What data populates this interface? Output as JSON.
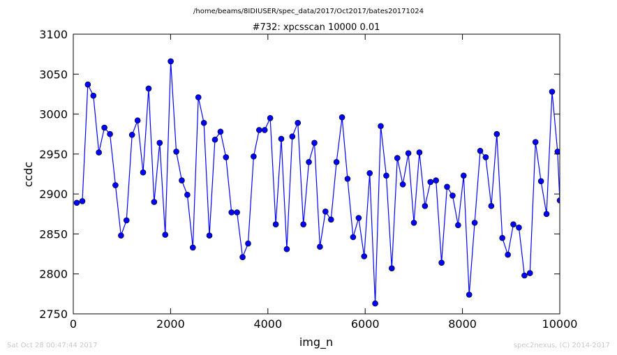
{
  "chart_data": {
    "type": "line",
    "suptitle": "/home/beams/8IDIUSER/spec_data/2017/Oct2017/bates20171024",
    "title": "#732: xpcsscan 10000 0.01",
    "xlabel": "img_n",
    "ylabel": "ccdc",
    "color": "#0000ff",
    "x": [
      72,
      186,
      299,
      413,
      526,
      640,
      754,
      867,
      981,
      1094,
      1208,
      1322,
      1435,
      1549,
      1662,
      1776,
      1890,
      2003,
      2117,
      2230,
      2344,
      2458,
      2571,
      2685,
      2798,
      2912,
      3026,
      3139,
      3253,
      3366,
      3480,
      3594,
      3707,
      3821,
      3934,
      4048,
      4162,
      4275,
      4389,
      4502,
      4616,
      4730,
      4843,
      4957,
      5070,
      5184,
      5298,
      5411,
      5525,
      5638,
      5752,
      5866,
      5979,
      6093,
      6206,
      6320,
      6434,
      6547,
      6661,
      6774,
      6888,
      7002,
      7115,
      7229,
      7342,
      7456,
      7570,
      7683,
      7797,
      7910,
      8024,
      8138,
      8251,
      8365,
      8478,
      8592,
      8706,
      8819,
      8933,
      9046,
      9160,
      9274,
      9387,
      9501,
      9614,
      9728,
      9842,
      9955,
      10000
    ],
    "values": [
      2889,
      2891,
      3037,
      3023,
      2952,
      2983,
      2975,
      2911,
      2848,
      2867,
      2974,
      2992,
      2927,
      3032,
      2890,
      2964,
      2849,
      3066,
      2953,
      2917,
      2899,
      2833,
      3021,
      2989,
      2848,
      2968,
      2978,
      2946,
      2877,
      2877,
      2821,
      2838,
      2947,
      2980,
      2980,
      2995,
      2862,
      2969,
      2831,
      2972,
      2989,
      2862,
      2940,
      2964,
      2834,
      2878,
      2868,
      2940,
      2996,
      2919,
      2846,
      2870,
      2822,
      2926,
      2763,
      2985,
      2923,
      2807,
      2945,
      2912,
      2951,
      2864,
      2952,
      2885,
      2915,
      2917,
      2814,
      2909,
      2898,
      2861,
      2923,
      2774,
      2864,
      2954,
      2946,
      2885,
      2975,
      2845,
      2824,
      2862,
      2858,
      2798,
      2801,
      2965,
      2916,
      2875,
      3028,
      2953,
      2892
    ],
    "xlim": [
      0,
      10000
    ],
    "xticks": [
      0,
      2000,
      4000,
      6000,
      8000,
      10000
    ],
    "ylim": [
      2750,
      3100
    ],
    "yticks": [
      2750,
      2800,
      2850,
      2900,
      2950,
      3000,
      3050,
      3100
    ]
  },
  "footer": {
    "left": "Sat Oct 28 00:47:44 2017",
    "right": "spec2nexus, (C) 2014-2017"
  }
}
